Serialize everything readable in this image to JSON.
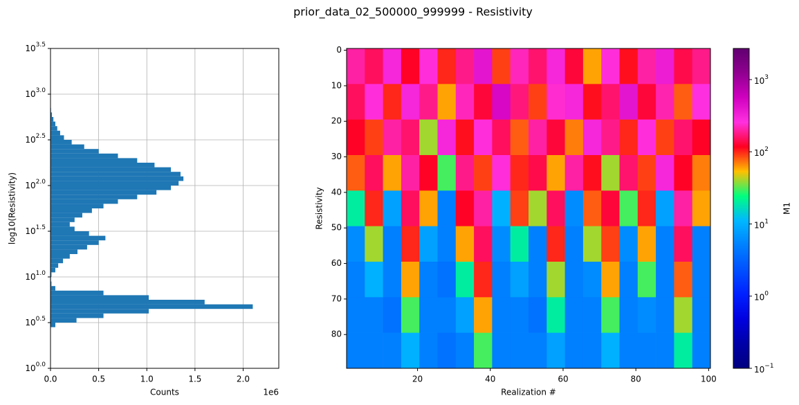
{
  "title": "prior_data_02_500000_999999 - Resistivity",
  "chart_data": [
    {
      "type": "histogram",
      "orientation": "horizontal",
      "xlabel": "Counts",
      "ylabel": "log10(Resistivity)",
      "x_offset_label": "1e6",
      "color": "#1f77b4",
      "grid": true,
      "bins": [
        0.45,
        0.5,
        0.55,
        0.6,
        0.65,
        0.7,
        0.75,
        0.8,
        0.85,
        0.9,
        0.95,
        1.0,
        1.05,
        1.1,
        1.15,
        1.2,
        1.25,
        1.3,
        1.35,
        1.4,
        1.45,
        1.5,
        1.55,
        1.6,
        1.65,
        1.7,
        1.75,
        1.8,
        1.85,
        1.9,
        1.95,
        2.0,
        2.05,
        2.1,
        2.15,
        2.2,
        2.25,
        2.3,
        2.35,
        2.4,
        2.45,
        2.5,
        2.55,
        2.6,
        2.65,
        2.7,
        2.75,
        2.8,
        2.85
      ],
      "counts": [
        50000,
        270000,
        550000,
        1020000,
        2100000,
        1600000,
        1020000,
        550000,
        50000,
        10000,
        5000,
        10000,
        50000,
        80000,
        130000,
        200000,
        280000,
        380000,
        500000,
        570000,
        400000,
        250000,
        200000,
        250000,
        330000,
        430000,
        550000,
        700000,
        900000,
        1100000,
        1250000,
        1330000,
        1380000,
        1350000,
        1250000,
        1080000,
        900000,
        700000,
        500000,
        350000,
        220000,
        140000,
        100000,
        70000,
        50000,
        30000,
        15000,
        5000
      ],
      "xlim": [
        0,
        2370000
      ],
      "xticks": [
        {
          "value": 0,
          "label": "0.0"
        },
        {
          "value": 500000,
          "label": "0.5"
        },
        {
          "value": 1000000,
          "label": "1.0"
        },
        {
          "value": 1500000,
          "label": "1.5"
        },
        {
          "value": 2000000,
          "label": "2.0"
        }
      ],
      "ylim": [
        0,
        3.5
      ],
      "yticks": [
        {
          "value": 0,
          "label": "10",
          "exponent": "0.0"
        },
        {
          "value": 0.5,
          "label": "10",
          "exponent": "0.5"
        },
        {
          "value": 1,
          "label": "10",
          "exponent": "1.0"
        },
        {
          "value": 1.5,
          "label": "10",
          "exponent": "1.5"
        },
        {
          "value": 2,
          "label": "10",
          "exponent": "2.0"
        },
        {
          "value": 2.5,
          "label": "10",
          "exponent": "2.5"
        },
        {
          "value": 3,
          "label": "10",
          "exponent": "3.0"
        },
        {
          "value": 3.5,
          "label": "10",
          "exponent": "3.5"
        }
      ]
    },
    {
      "type": "heatmap",
      "xlabel": "Realization #",
      "ylabel": "Resistivity",
      "xbins": [
        0.5,
        5.5,
        10.5,
        15.5,
        20.5,
        25.5,
        30.5,
        35.5,
        40.5,
        45.5,
        50.5,
        55.5,
        60.5,
        65.5,
        70.5,
        75.5,
        80.5,
        85.5,
        90.5,
        95.5,
        100.5
      ],
      "ybins": [
        -0.5,
        9.5,
        19.5,
        29.5,
        39.5,
        49.5,
        59.5,
        69.5,
        79.5,
        89.5
      ],
      "values": [
        [
          200,
          150,
          300,
          120,
          250,
          100,
          180,
          400,
          90,
          220,
          160,
          300,
          130,
          60,
          250,
          110,
          200,
          350,
          140,
          180
        ],
        [
          150,
          250,
          100,
          300,
          180,
          60,
          220,
          130,
          500,
          170,
          90,
          240,
          300,
          110,
          160,
          400,
          130,
          210,
          80,
          260
        ],
        [
          120,
          90,
          200,
          160,
          40,
          300,
          110,
          250,
          150,
          80,
          200,
          130,
          70,
          300,
          180,
          100,
          250,
          90,
          160,
          120
        ],
        [
          80,
          150,
          60,
          200,
          120,
          30,
          180,
          90,
          250,
          100,
          140,
          60,
          200,
          110,
          40,
          160,
          90,
          300,
          120,
          70
        ],
        [
          20,
          100,
          8,
          150,
          60,
          5,
          120,
          200,
          10,
          90,
          40,
          150,
          6,
          80,
          130,
          30,
          100,
          8,
          200,
          60
        ],
        [
          6,
          40,
          5,
          100,
          8,
          5,
          60,
          150,
          6,
          20,
          5,
          100,
          5,
          40,
          90,
          6,
          60,
          5,
          150,
          5
        ],
        [
          5,
          10,
          5,
          60,
          5,
          4,
          20,
          100,
          5,
          8,
          5,
          40,
          5,
          6,
          60,
          5,
          30,
          5,
          80,
          5
        ],
        [
          5,
          5,
          4,
          30,
          5,
          5,
          8,
          60,
          5,
          5,
          4,
          20,
          5,
          5,
          30,
          5,
          6,
          5,
          40,
          5
        ],
        [
          5,
          5,
          5,
          10,
          5,
          4,
          5,
          30,
          5,
          5,
          5,
          8,
          5,
          5,
          10,
          5,
          5,
          5,
          20,
          5
        ]
      ],
      "xlim": [
        0.5,
        100.5
      ],
      "xticks": [
        20,
        40,
        60,
        80,
        100
      ],
      "ylim": [
        89.5,
        -0.5
      ],
      "yticks": [
        0,
        10,
        20,
        30,
        40,
        50,
        60,
        70,
        80
      ],
      "colorbar": {
        "label": "M1",
        "log": true,
        "clim": [
          0.1,
          2700
        ],
        "colormap": [
          "#000080",
          "#0000a8",
          "#0000e0",
          "#0020ff",
          "#0050ff",
          "#0080ff",
          "#00b8ff",
          "#00ff80",
          "#ffc000",
          "#ff0020",
          "#ff30e0",
          "#d000c0",
          "#900090",
          "#600070"
        ],
        "ticks": [
          {
            "value": 0.1,
            "label": "10",
            "exponent": "−1"
          },
          {
            "value": 1,
            "label": "10",
            "exponent": "0"
          },
          {
            "value": 10,
            "label": "10",
            "exponent": "1"
          },
          {
            "value": 100,
            "label": "10",
            "exponent": "2"
          },
          {
            "value": 1000,
            "label": "10",
            "exponent": "3"
          }
        ]
      }
    }
  ]
}
